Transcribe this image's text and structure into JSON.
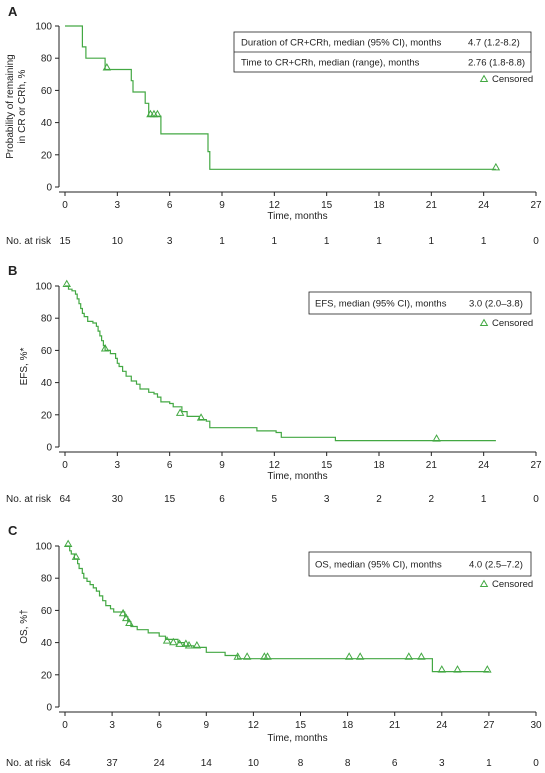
{
  "chart_data": [
    {
      "type": "line",
      "panel_label": "A",
      "ylabel_lines": [
        "Probability of remaining",
        "in CR or CRh, %"
      ],
      "xlabel": "Time, months",
      "xlim": [
        0,
        27
      ],
      "ylim": [
        0,
        100
      ],
      "xticks": [
        0,
        3,
        6,
        9,
        12,
        15,
        18,
        21,
        24,
        27
      ],
      "yticks": [
        0,
        20,
        40,
        60,
        80,
        100
      ],
      "color": "#43a843",
      "steps": [
        [
          0,
          100
        ],
        [
          1,
          100
        ],
        [
          1,
          87
        ],
        [
          1.2,
          87
        ],
        [
          1.2,
          80
        ],
        [
          2.3,
          80
        ],
        [
          2.3,
          73
        ],
        [
          3.8,
          73
        ],
        [
          3.8,
          66
        ],
        [
          3.9,
          66
        ],
        [
          3.9,
          59
        ],
        [
          4.6,
          59
        ],
        [
          4.6,
          52
        ],
        [
          4.8,
          52
        ],
        [
          4.8,
          44
        ],
        [
          5.5,
          44
        ],
        [
          5.5,
          33
        ],
        [
          8.2,
          33
        ],
        [
          8.2,
          22
        ],
        [
          8.3,
          22
        ],
        [
          8.3,
          11
        ],
        [
          24.7,
          11
        ]
      ],
      "censored": [
        [
          2.4,
          73
        ],
        [
          4.9,
          44
        ],
        [
          5.1,
          44
        ],
        [
          5.3,
          44
        ],
        [
          24.7,
          11
        ]
      ],
      "legend_rows": [
        {
          "label": "Duration of CR+CRh, median (95% CI), months",
          "value": "4.7 (1.2-8.2)"
        },
        {
          "label": "Time to CR+CRh, median (range), months",
          "value": "2.76 (1.8-8.8)"
        }
      ],
      "censored_label": "Censored",
      "at_risk_label": "No. at risk",
      "at_risk": [
        "15",
        "10",
        "3",
        "1",
        "1",
        "1",
        "1",
        "1",
        "1",
        "0"
      ]
    },
    {
      "type": "line",
      "panel_label": "B",
      "ylabel_lines": [
        "EFS, %*"
      ],
      "xlabel": "Time, months",
      "xlim": [
        0,
        27
      ],
      "ylim": [
        0,
        100
      ],
      "xticks": [
        0,
        3,
        6,
        9,
        12,
        15,
        18,
        21,
        24,
        27
      ],
      "yticks": [
        0,
        20,
        40,
        60,
        80,
        100
      ],
      "color": "#43a843",
      "steps": [
        [
          0,
          100
        ],
        [
          0.2,
          100
        ],
        [
          0.2,
          98
        ],
        [
          0.4,
          98
        ],
        [
          0.4,
          97
        ],
        [
          0.6,
          97
        ],
        [
          0.6,
          95
        ],
        [
          0.7,
          95
        ],
        [
          0.7,
          92
        ],
        [
          0.8,
          92
        ],
        [
          0.8,
          89
        ],
        [
          0.9,
          89
        ],
        [
          0.9,
          86
        ],
        [
          1,
          86
        ],
        [
          1,
          83
        ],
        [
          1.1,
          83
        ],
        [
          1.1,
          81
        ],
        [
          1.3,
          81
        ],
        [
          1.3,
          78
        ],
        [
          1.6,
          78
        ],
        [
          1.6,
          77
        ],
        [
          1.8,
          77
        ],
        [
          1.8,
          75
        ],
        [
          1.9,
          75
        ],
        [
          1.9,
          72
        ],
        [
          2,
          72
        ],
        [
          2,
          69
        ],
        [
          2.1,
          69
        ],
        [
          2.1,
          66
        ],
        [
          2.2,
          66
        ],
        [
          2.2,
          63
        ],
        [
          2.3,
          63
        ],
        [
          2.3,
          60
        ],
        [
          2.6,
          60
        ],
        [
          2.6,
          58
        ],
        [
          2.9,
          58
        ],
        [
          2.9,
          55
        ],
        [
          3,
          55
        ],
        [
          3,
          52
        ],
        [
          3.1,
          52
        ],
        [
          3.1,
          50
        ],
        [
          3.3,
          50
        ],
        [
          3.3,
          47
        ],
        [
          3.5,
          47
        ],
        [
          3.5,
          44
        ],
        [
          3.8,
          44
        ],
        [
          3.8,
          41
        ],
        [
          4.1,
          41
        ],
        [
          4.1,
          39
        ],
        [
          4.3,
          39
        ],
        [
          4.3,
          36
        ],
        [
          4.8,
          36
        ],
        [
          4.8,
          34
        ],
        [
          5.1,
          34
        ],
        [
          5.1,
          33
        ],
        [
          5.3,
          33
        ],
        [
          5.3,
          31
        ],
        [
          5.5,
          31
        ],
        [
          5.5,
          28
        ],
        [
          6.0,
          28
        ],
        [
          6.0,
          27
        ],
        [
          6.2,
          27
        ],
        [
          6.2,
          25
        ],
        [
          6.7,
          25
        ],
        [
          6.7,
          22
        ],
        [
          7.0,
          22
        ],
        [
          7.0,
          19
        ],
        [
          7.7,
          19
        ],
        [
          7.7,
          17
        ],
        [
          8.1,
          17
        ],
        [
          8.1,
          16
        ],
        [
          8.3,
          16
        ],
        [
          8.3,
          12
        ],
        [
          11.0,
          12
        ],
        [
          11.0,
          10
        ],
        [
          12.1,
          10
        ],
        [
          12.1,
          9
        ],
        [
          12.4,
          9
        ],
        [
          12.4,
          6
        ],
        [
          15.5,
          6
        ],
        [
          15.5,
          4
        ],
        [
          24.7,
          4
        ]
      ],
      "censored": [
        [
          0.1,
          100
        ],
        [
          2.3,
          60
        ],
        [
          6.6,
          20
        ],
        [
          7.8,
          17
        ],
        [
          21.3,
          4
        ]
      ],
      "legend_rows": [
        {
          "label": "EFS, median (95% CI), months",
          "value": "3.0 (2.0–3.8)"
        }
      ],
      "censored_label": "Censored",
      "at_risk_label": "No. at risk",
      "at_risk": [
        "64",
        "30",
        "15",
        "6",
        "5",
        "3",
        "2",
        "2",
        "1",
        "0"
      ]
    },
    {
      "type": "line",
      "panel_label": "C",
      "ylabel_lines": [
        "OS, %†"
      ],
      "xlabel": "Time, months",
      "xlim": [
        0,
        30
      ],
      "ylim": [
        0,
        100
      ],
      "xticks": [
        0,
        3,
        6,
        9,
        12,
        15,
        18,
        21,
        24,
        27,
        30
      ],
      "yticks": [
        0,
        20,
        40,
        60,
        80,
        100
      ],
      "color": "#43a843",
      "steps": [
        [
          0,
          100
        ],
        [
          0.3,
          100
        ],
        [
          0.3,
          97
        ],
        [
          0.4,
          97
        ],
        [
          0.4,
          95
        ],
        [
          0.6,
          95
        ],
        [
          0.6,
          92
        ],
        [
          0.8,
          92
        ],
        [
          0.8,
          89
        ],
        [
          0.9,
          89
        ],
        [
          0.9,
          86
        ],
        [
          1.1,
          86
        ],
        [
          1.1,
          83
        ],
        [
          1.2,
          83
        ],
        [
          1.2,
          80
        ],
        [
          1.4,
          80
        ],
        [
          1.4,
          78
        ],
        [
          1.6,
          78
        ],
        [
          1.6,
          76
        ],
        [
          1.8,
          76
        ],
        [
          1.8,
          74
        ],
        [
          2.0,
          74
        ],
        [
          2.0,
          72
        ],
        [
          2.2,
          72
        ],
        [
          2.2,
          69
        ],
        [
          2.4,
          69
        ],
        [
          2.4,
          66
        ],
        [
          2.6,
          66
        ],
        [
          2.6,
          63
        ],
        [
          2.9,
          63
        ],
        [
          2.9,
          61
        ],
        [
          3.1,
          61
        ],
        [
          3.1,
          59
        ],
        [
          3.8,
          59
        ],
        [
          3.8,
          56
        ],
        [
          4.0,
          56
        ],
        [
          4.0,
          53
        ],
        [
          4.2,
          53
        ],
        [
          4.2,
          50
        ],
        [
          4.6,
          50
        ],
        [
          4.6,
          48
        ],
        [
          5.3,
          48
        ],
        [
          5.3,
          46
        ],
        [
          6.0,
          46
        ],
        [
          6.0,
          44
        ],
        [
          6.4,
          44
        ],
        [
          6.4,
          42
        ],
        [
          7.2,
          42
        ],
        [
          7.2,
          40
        ],
        [
          7.6,
          40
        ],
        [
          7.6,
          38
        ],
        [
          8.2,
          38
        ],
        [
          8.2,
          37
        ],
        [
          9.0,
          37
        ],
        [
          9.0,
          34
        ],
        [
          10.2,
          34
        ],
        [
          10.2,
          32
        ],
        [
          11.0,
          32
        ],
        [
          11.0,
          30
        ],
        [
          23.4,
          30
        ],
        [
          23.4,
          22
        ],
        [
          27,
          22
        ]
      ],
      "censored": [
        [
          0.2,
          100
        ],
        [
          0.7,
          92
        ],
        [
          3.7,
          57
        ],
        [
          3.9,
          54
        ],
        [
          4.1,
          51
        ],
        [
          6.5,
          40
        ],
        [
          6.9,
          39
        ],
        [
          7.3,
          38
        ],
        [
          7.7,
          38
        ],
        [
          7.9,
          37
        ],
        [
          8.4,
          37
        ],
        [
          11,
          30
        ],
        [
          11.6,
          30
        ],
        [
          12.7,
          30
        ],
        [
          12.9,
          30
        ],
        [
          18.1,
          30
        ],
        [
          18.8,
          30
        ],
        [
          21.9,
          30
        ],
        [
          22.7,
          30
        ],
        [
          24.0,
          22
        ],
        [
          25.0,
          22
        ],
        [
          26.9,
          22
        ]
      ],
      "legend_rows": [
        {
          "label": "OS, median (95% CI), months",
          "value": "4.0 (2.5–7.2)"
        }
      ],
      "censored_label": "Censored",
      "at_risk_label": "No. at risk",
      "at_risk": [
        "64",
        "37",
        "24",
        "14",
        "10",
        "8",
        "8",
        "6",
        "3",
        "1",
        "0"
      ]
    }
  ]
}
